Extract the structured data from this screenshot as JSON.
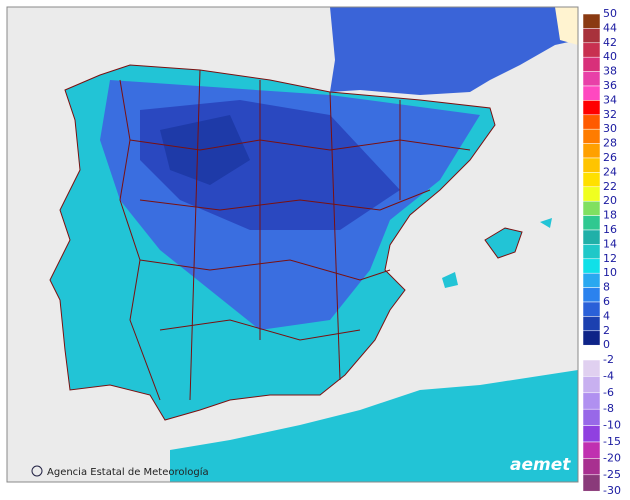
{
  "map": {
    "credit": "Agencia Estatal de Meteorología",
    "logo": "aemet"
  },
  "legend": {
    "positive": {
      "labels": [
        "50",
        "44",
        "42",
        "40",
        "38",
        "36",
        "34",
        "32",
        "30",
        "28",
        "26",
        "24",
        "22",
        "20",
        "18",
        "16",
        "14",
        "12",
        "10",
        "8",
        "6",
        "4",
        "2",
        "0"
      ],
      "colors": [
        "#8a3a12",
        "#a8323c",
        "#c83050",
        "#d8307a",
        "#e840a8",
        "#ff48c0",
        "#ff0000",
        "#ff5a00",
        "#ff7c00",
        "#ffa000",
        "#ffc400",
        "#ffe000",
        "#f0ff20",
        "#80e060",
        "#30c890",
        "#20b0a8",
        "#20c8c8",
        "#10e0e8",
        "#2aa8f0",
        "#2b82ee",
        "#2a60d8",
        "#1c40b0",
        "#0e2488"
      ]
    },
    "negative": {
      "labels": [
        "-2",
        "-4",
        "-6",
        "-8",
        "-10",
        "-15",
        "-20",
        "-25",
        "-30"
      ],
      "colors": [
        "#e0d0f0",
        "#c8b0f0",
        "#b090f0",
        "#9868e8",
        "#9040e0",
        "#c030b0",
        "#a83090",
        "#8a3a7a"
      ]
    }
  }
}
